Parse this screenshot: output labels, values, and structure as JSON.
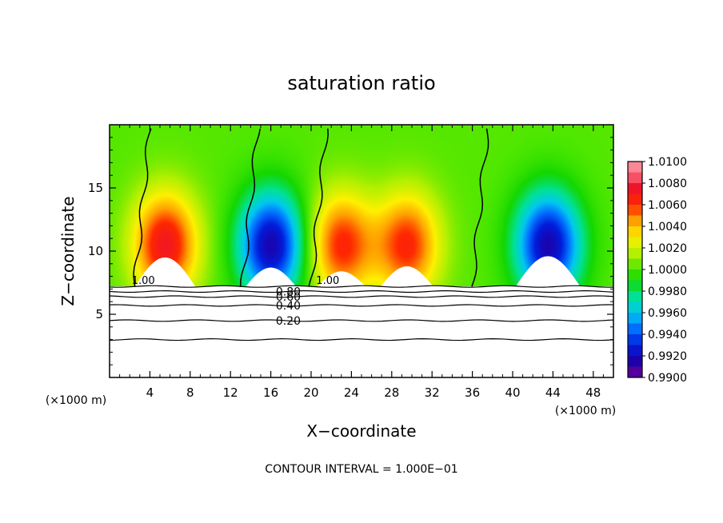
{
  "chart_data": {
    "type": "heatmap",
    "title": "saturation ratio",
    "xlabel": "X−coordinate",
    "ylabel": "Z−coordinate",
    "x_unit_left": "(×1000 m)",
    "x_unit_right": "(×1000 m)",
    "footer": "CONTOUR INTERVAL = 1.000E−01",
    "xlim": [
      0,
      50
    ],
    "ylim": [
      0,
      20
    ],
    "x_ticks": [
      4,
      8,
      12,
      16,
      20,
      24,
      28,
      32,
      36,
      40,
      44,
      48
    ],
    "y_ticks": [
      5,
      10,
      15
    ],
    "x_tick_labels": [
      "4",
      "8",
      "12",
      "16",
      "20",
      "24",
      "28",
      "32",
      "36",
      "40",
      "44",
      "48"
    ],
    "y_tick_labels": [
      "5",
      "10",
      "15"
    ],
    "colorbar": {
      "min": 0.99,
      "max": 1.01,
      "labels": [
        "1.0100",
        "1.0080",
        "1.0060",
        "1.0040",
        "1.0020",
        "1.0000",
        "0.9980",
        "0.9960",
        "0.9940",
        "0.9920",
        "0.9900"
      ]
    },
    "plume_centers_x": [
      5.5,
      16,
      23,
      29.5,
      43.5
    ],
    "plume_values": [
      1.007,
      0.9915,
      1.006,
      1.006,
      0.9915
    ],
    "near_zero_line_x": [
      2.5,
      13.2,
      20.0,
      36.0
    ],
    "surface_contours": [
      {
        "label": "0.20",
        "z": 4.5
      },
      {
        "label": "0.40",
        "z": 5.7
      },
      {
        "label": "0.60",
        "z": 6.4
      },
      {
        "label": "0.80",
        "z": 6.8
      }
    ],
    "contour_labels_top": [
      "1.00",
      "1.00"
    ],
    "bottom_unlabeled_contour_z": 3.0,
    "domain_floor_z": 7.2
  }
}
